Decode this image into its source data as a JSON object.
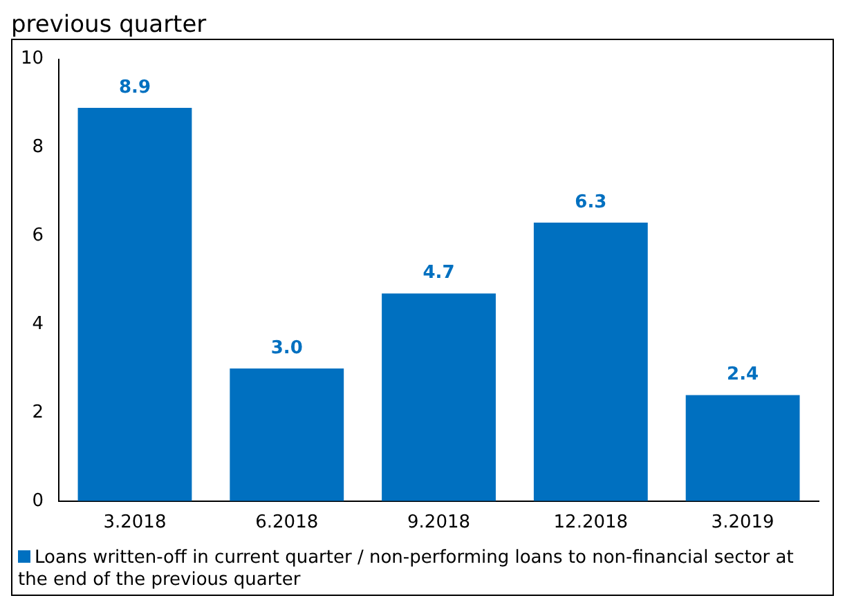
{
  "chart_data": {
    "type": "bar",
    "title": "previous quarter",
    "categories": [
      "3.2018",
      "6.2018",
      "9.2018",
      "12.2018",
      "3.2019"
    ],
    "series": [
      {
        "name": "Loans written-off in current quarter / non-performing loans to non-financial sector at the end of the previous quarter",
        "color": "#0070c0",
        "values": [
          8.9,
          3.0,
          4.7,
          6.3,
          2.4
        ],
        "value_labels": [
          "8.9",
          "3.0",
          "4.7",
          "6.3",
          "2.4"
        ]
      }
    ],
    "ylim": [
      0,
      10
    ],
    "yticks": [
      0,
      2,
      4,
      6,
      8,
      10
    ],
    "grid": false,
    "legend": "bottom"
  }
}
